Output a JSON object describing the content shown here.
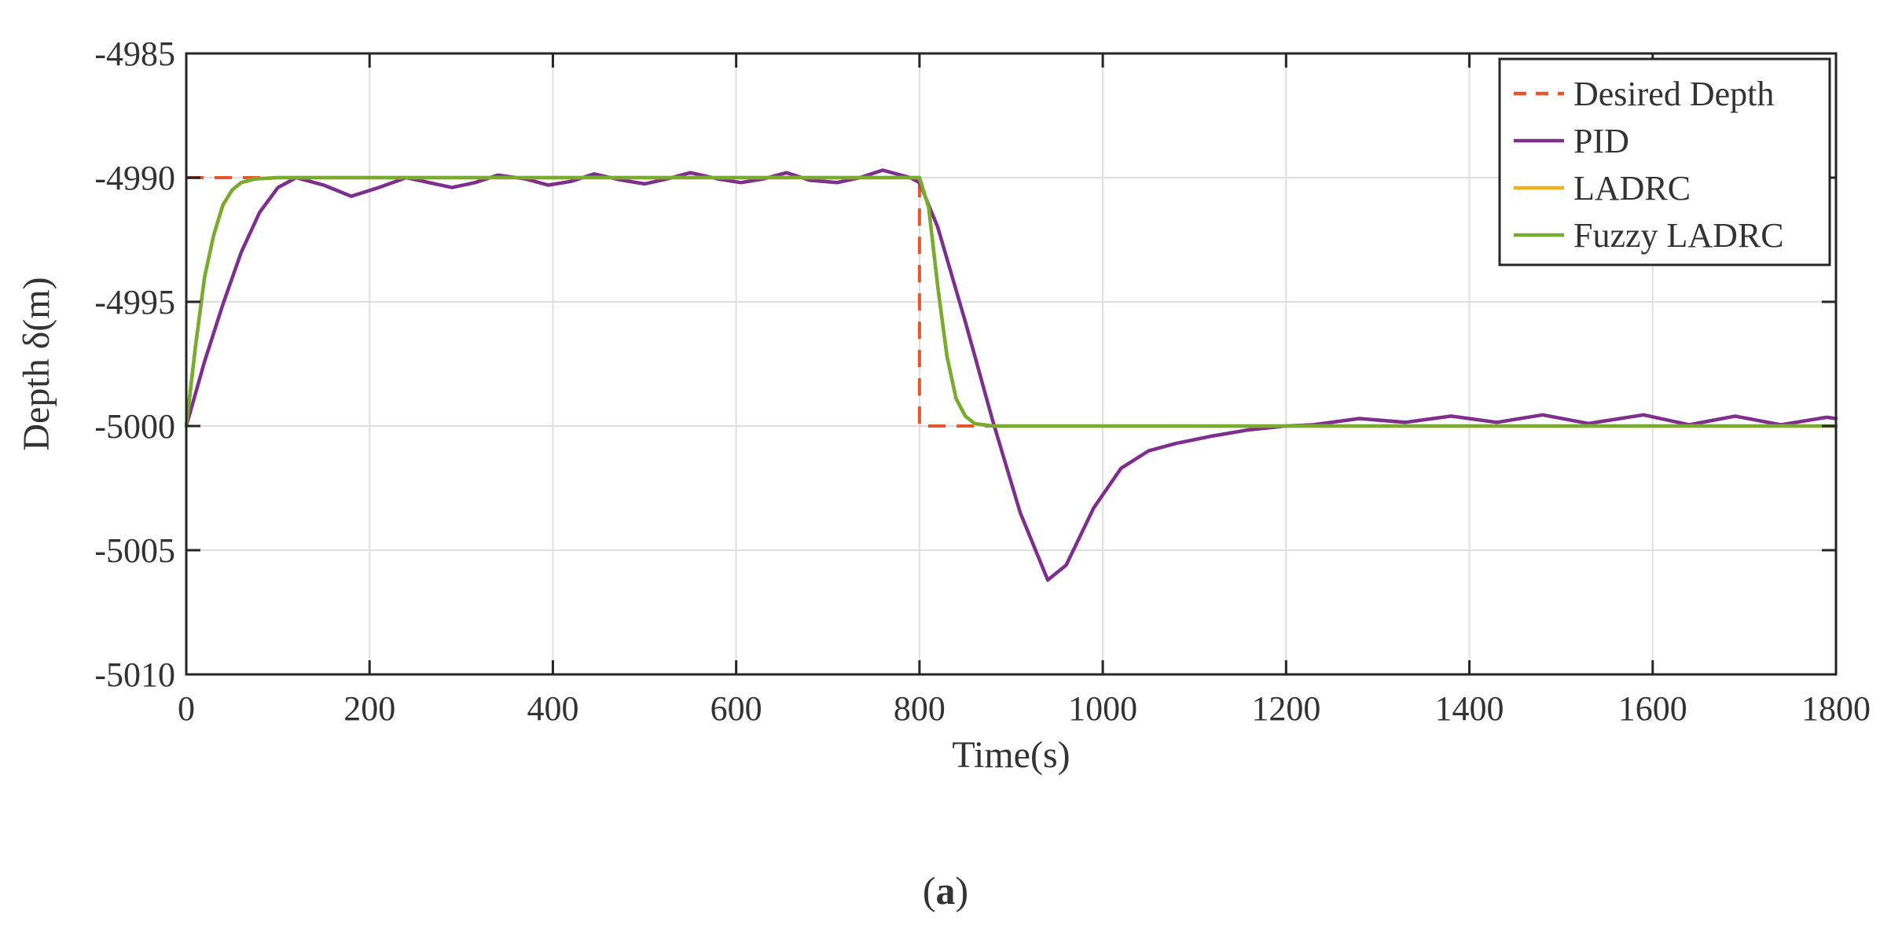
{
  "chart_data": {
    "type": "line",
    "xlabel": "Time(s)",
    "ylabel": "Depth δ(m)",
    "caption_letter": "a",
    "caption_open": "(",
    "caption_close": ")",
    "xlim": [
      0,
      1800
    ],
    "ylim": [
      -5010,
      -4985
    ],
    "xticks": [
      0,
      200,
      400,
      600,
      800,
      1000,
      1200,
      1400,
      1600,
      1800
    ],
    "yticks": [
      -4985,
      -4990,
      -4995,
      -5000,
      -5005,
      -5010
    ],
    "grid": true,
    "legend_position": "top-right",
    "series": [
      {
        "name": "Desired Depth",
        "color": "#E8562A",
        "style": "dashed",
        "x": [
          0,
          800,
          800,
          1800
        ],
        "y": [
          -4990,
          -4990,
          -5000,
          -5000
        ]
      },
      {
        "name": "PID",
        "color": "#7E2F8E",
        "style": "solid",
        "x": [
          0,
          20,
          40,
          60,
          80,
          100,
          120,
          150,
          180,
          210,
          240,
          265,
          290,
          315,
          340,
          370,
          395,
          420,
          445,
          475,
          500,
          525,
          550,
          580,
          605,
          630,
          655,
          680,
          710,
          735,
          760,
          790,
          800,
          820,
          850,
          880,
          910,
          940,
          960,
          990,
          1020,
          1050,
          1080,
          1120,
          1160,
          1200,
          1230,
          1280,
          1330,
          1380,
          1430,
          1480,
          1530,
          1590,
          1640,
          1690,
          1740,
          1790,
          1800
        ],
        "y": [
          -5000,
          -4997.4,
          -4995.1,
          -4993.0,
          -4991.4,
          -4990.4,
          -4990.0,
          -4990.3,
          -4990.75,
          -4990.4,
          -4990.0,
          -4990.2,
          -4990.4,
          -4990.2,
          -4989.9,
          -4990.05,
          -4990.3,
          -4990.15,
          -4989.85,
          -4990.1,
          -4990.25,
          -4990.05,
          -4989.8,
          -4990.05,
          -4990.2,
          -4990.05,
          -4989.8,
          -4990.1,
          -4990.2,
          -4990.0,
          -4989.7,
          -4990.0,
          -4990.2,
          -4992.0,
          -4995.8,
          -4999.8,
          -5003.5,
          -5006.2,
          -5005.6,
          -5003.3,
          -5001.7,
          -5001.0,
          -5000.7,
          -5000.4,
          -5000.15,
          -5000.0,
          -4999.95,
          -4999.7,
          -4999.85,
          -4999.6,
          -4999.85,
          -4999.55,
          -4999.9,
          -4999.55,
          -4999.95,
          -4999.6,
          -4999.95,
          -4999.65,
          -4999.7
        ]
      },
      {
        "name": "LADRC",
        "color": "#EDB120",
        "style": "solid",
        "x": [
          0,
          10,
          20,
          30,
          40,
          50,
          60,
          75,
          100,
          800,
          810,
          820,
          830,
          840,
          850,
          860,
          880,
          1800
        ],
        "y": [
          -5000,
          -4996.8,
          -4994.0,
          -4992.3,
          -4991.1,
          -4990.5,
          -4990.2,
          -4990.05,
          -4990.0,
          -4990.0,
          -4991.2,
          -4994.4,
          -4997.2,
          -4998.9,
          -4999.6,
          -4999.9,
          -5000.0,
          -5000.0
        ]
      },
      {
        "name": "Fuzzy LADRC",
        "color": "#77AC30",
        "style": "solid",
        "x": [
          0,
          10,
          20,
          30,
          40,
          50,
          60,
          75,
          100,
          800,
          810,
          820,
          830,
          840,
          850,
          860,
          880,
          1800
        ],
        "y": [
          -5000,
          -4996.8,
          -4994.0,
          -4992.3,
          -4991.1,
          -4990.5,
          -4990.2,
          -4990.05,
          -4990.0,
          -4990.0,
          -4991.2,
          -4994.4,
          -4997.2,
          -4998.9,
          -4999.6,
          -4999.9,
          -5000.0,
          -5000.0
        ]
      }
    ]
  }
}
